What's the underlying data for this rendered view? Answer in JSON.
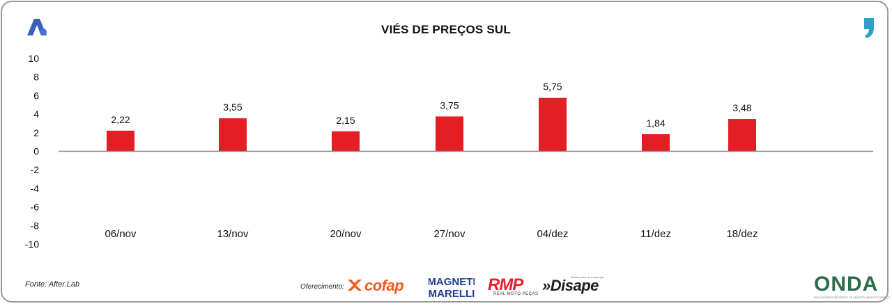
{
  "title": "VIÉS DE PREÇOS SUL",
  "source": "Fonte: After.Lab",
  "sponsor_label": "Oferecimento:",
  "brands": {
    "cofap": "cofap",
    "magneti_top": "MAGNETI",
    "magneti_bottom": "MARELLI",
    "rmp": "RMP",
    "rmp_sub": "REAL MOTO PEÇAS",
    "disape": "»Disape",
    "disape_sub": "Distribuidora de Autopeças",
    "onda": "ONDA",
    "onda_sub": "INDICADORES DE NÍVEIS DE ABASTECIMENTO E PREÇO"
  },
  "icons": {
    "left_logo": "after-lab-logo",
    "right_logo": "quote-mark-icon"
  },
  "colors": {
    "bar": "#e31e24",
    "axis": "#7f7f7f",
    "text": "#111111"
  },
  "chart_data": {
    "type": "bar",
    "categories": [
      "06/nov",
      "13/nov",
      "20/nov",
      "27/nov",
      "04/dez",
      "11/dez",
      "18/dez"
    ],
    "values": [
      2.22,
      3.55,
      2.15,
      3.75,
      5.75,
      1.84,
      3.48
    ],
    "labels": [
      "2,22",
      "3,55",
      "2,15",
      "3,75",
      "5,75",
      "1,84",
      "3,48"
    ],
    "ylim": [
      -10,
      10
    ],
    "yticks": [
      10,
      8,
      6,
      4,
      2,
      0,
      -2,
      -4,
      -6,
      -8,
      -10
    ],
    "ytick_labels": [
      "10",
      "8",
      "6",
      "4",
      "2",
      "0",
      "-2",
      "-4",
      "-6",
      "-8",
      "-10"
    ],
    "grid": false,
    "legend": "none"
  }
}
